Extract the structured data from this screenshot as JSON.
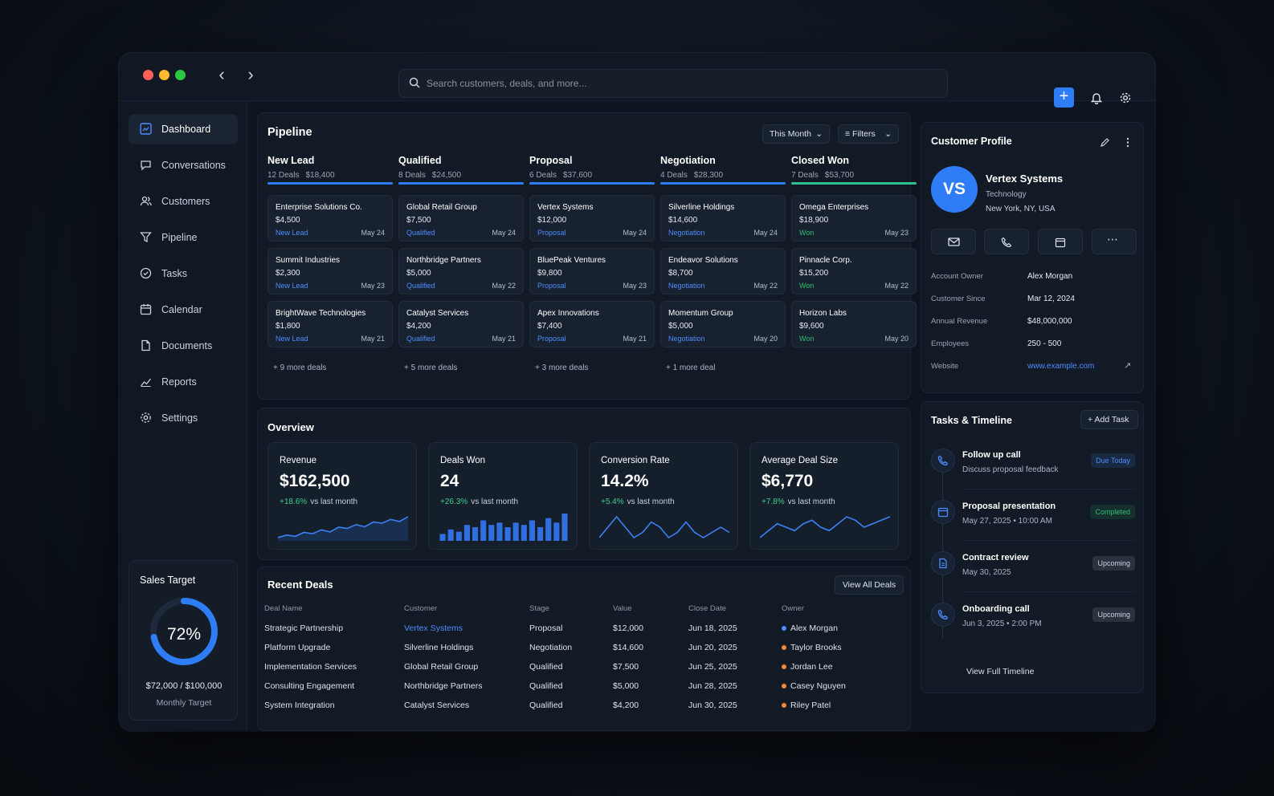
{
  "search": {
    "placeholder": "Search customers, deals, and more..."
  },
  "sidebar": {
    "items": [
      {
        "label": "Dashboard",
        "icon": "dashboard-icon"
      },
      {
        "label": "Conversations",
        "icon": "chat-icon"
      },
      {
        "label": "Customers",
        "icon": "users-icon"
      },
      {
        "label": "Pipeline",
        "icon": "funnel-icon"
      },
      {
        "label": "Tasks",
        "icon": "check-circle-icon"
      },
      {
        "label": "Calendar",
        "icon": "calendar-icon"
      },
      {
        "label": "Documents",
        "icon": "document-icon"
      },
      {
        "label": "Reports",
        "icon": "chart-icon"
      },
      {
        "label": "Settings",
        "icon": "gear-icon"
      }
    ]
  },
  "sales_target": {
    "title": "Sales Target",
    "percent_label": "72%",
    "progress": 0.72,
    "amount": "$72,000 / $100,000",
    "subtitle": "Monthly Target"
  },
  "pipeline": {
    "title": "Pipeline",
    "period": "This Month",
    "filters": "Filters",
    "columns": [
      {
        "name": "New Lead",
        "count": "12 Deals",
        "total": "$18,400",
        "color": "#2f7df6",
        "status_color": "#4c8dff",
        "deals": [
          {
            "name": "Enterprise Solutions Co.",
            "value": "$4,500",
            "stage": "New Lead",
            "date": "May 24"
          },
          {
            "name": "Summit Industries",
            "value": "$2,300",
            "stage": "New Lead",
            "date": "May 23"
          },
          {
            "name": "BrightWave Technologies",
            "value": "$1,800",
            "stage": "New Lead",
            "date": "May 21"
          }
        ],
        "more": "+ 9 more deals"
      },
      {
        "name": "Qualified",
        "count": "8 Deals",
        "total": "$24,500",
        "color": "#2f7df6",
        "status_color": "#4c8dff",
        "deals": [
          {
            "name": "Global Retail Group",
            "value": "$7,500",
            "stage": "Qualified",
            "date": "May 24"
          },
          {
            "name": "Northbridge Partners",
            "value": "$5,000",
            "stage": "Qualified",
            "date": "May 22"
          },
          {
            "name": "Catalyst Services",
            "value": "$4,200",
            "stage": "Qualified",
            "date": "May 21"
          }
        ],
        "more": "+ 5 more deals"
      },
      {
        "name": "Proposal",
        "count": "6 Deals",
        "total": "$37,600",
        "color": "#2f7df6",
        "status_color": "#4c8dff",
        "deals": [
          {
            "name": "Vertex Systems",
            "value": "$12,000",
            "stage": "Proposal",
            "date": "May 24"
          },
          {
            "name": "BluePeak Ventures",
            "value": "$9,800",
            "stage": "Proposal",
            "date": "May 23"
          },
          {
            "name": "Apex Innovations",
            "value": "$7,400",
            "stage": "Proposal",
            "date": "May 21"
          }
        ],
        "more": "+ 3 more deals"
      },
      {
        "name": "Negotiation",
        "count": "4 Deals",
        "total": "$28,300",
        "color": "#2f7df6",
        "status_color": "#4c8dff",
        "deals": [
          {
            "name": "Silverline Holdings",
            "value": "$14,600",
            "stage": "Negotiation",
            "date": "May 24"
          },
          {
            "name": "Endeavor Solutions",
            "value": "$8,700",
            "stage": "Negotiation",
            "date": "May 22"
          },
          {
            "name": "Momentum Group",
            "value": "$5,000",
            "stage": "Negotiation",
            "date": "May 20"
          }
        ],
        "more": "+ 1 more deal"
      },
      {
        "name": "Closed Won",
        "count": "7 Deals",
        "total": "$53,700",
        "color": "#2fbf8f",
        "status_color": "#2fbf6f",
        "deals": [
          {
            "name": "Omega Enterprises",
            "value": "$18,900",
            "stage": "Won",
            "date": "May 23"
          },
          {
            "name": "Pinnacle Corp.",
            "value": "$15,200",
            "stage": "Won",
            "date": "May 22"
          },
          {
            "name": "Horizon Labs",
            "value": "$9,600",
            "stage": "Won",
            "date": "May 20"
          }
        ],
        "more": ""
      }
    ]
  },
  "overview": {
    "title": "Overview",
    "metrics": [
      {
        "label": "Revenue",
        "value": "$162,500",
        "change": "+18.6%",
        "suffix": "vs last month",
        "chart": "area",
        "series": [
          3,
          4,
          3.5,
          5,
          4.5,
          6,
          5.2,
          7,
          6.5,
          8,
          7.2,
          9,
          8.5,
          10,
          9.2,
          11
        ]
      },
      {
        "label": "Deals Won",
        "value": "24",
        "change": "+26.3%",
        "suffix": "vs last month",
        "chart": "bars",
        "series": [
          3,
          5,
          4,
          7,
          6,
          9,
          7,
          8,
          6,
          8,
          7,
          9,
          6,
          10,
          8,
          12
        ]
      },
      {
        "label": "Conversion Rate",
        "value": "14.2%",
        "change": "+5.4%",
        "suffix": "vs last month",
        "chart": "line",
        "series": [
          5,
          7,
          9,
          7,
          5,
          6,
          8,
          7,
          5,
          6,
          8,
          6,
          5,
          6,
          7,
          6
        ]
      },
      {
        "label": "Average Deal Size",
        "value": "$6,770",
        "change": "+7.8%",
        "suffix": "vs last month",
        "chart": "line",
        "series": [
          3,
          5,
          7,
          6,
          5,
          7,
          8,
          6,
          5,
          7,
          9,
          8,
          6,
          7,
          8,
          9
        ]
      }
    ]
  },
  "recent_deals": {
    "title": "Recent Deals",
    "view_all": "View All Deals",
    "headers": [
      "Deal Name",
      "Customer",
      "Stage",
      "Value",
      "Close Date",
      "Owner"
    ],
    "rows": [
      {
        "deal": "Strategic Partnership",
        "customer": "Vertex Systems",
        "stage": "Proposal",
        "value": "$12,000",
        "date": "Jun 18, 2025",
        "owner": "Alex Morgan",
        "owner_color": "#4c8dff",
        "customer_link": true
      },
      {
        "deal": "Platform Upgrade",
        "customer": "Silverline Holdings",
        "stage": "Negotiation",
        "value": "$14,600",
        "date": "Jun 20, 2025",
        "owner": "Taylor Brooks",
        "owner_color": "#f08a3c",
        "customer_link": false
      },
      {
        "deal": "Implementation Services",
        "customer": "Global Retail Group",
        "stage": "Qualified",
        "value": "$7,500",
        "date": "Jun 25, 2025",
        "owner": "Jordan Lee",
        "owner_color": "#f08a3c",
        "customer_link": false
      },
      {
        "deal": "Consulting Engagement",
        "customer": "Northbridge Partners",
        "stage": "Qualified",
        "value": "$5,000",
        "date": "Jun 28, 2025",
        "owner": "Casey Nguyen",
        "owner_color": "#f08a3c",
        "customer_link": false
      },
      {
        "deal": "System Integration",
        "customer": "Catalyst Services",
        "stage": "Qualified",
        "value": "$4,200",
        "date": "Jun 30, 2025",
        "owner": "Riley Patel",
        "owner_color": "#f08a3c",
        "customer_link": false
      }
    ]
  },
  "customer_profile": {
    "title": "Customer Profile",
    "initials": "VS",
    "name": "Vertex Systems",
    "industry": "Technology",
    "location": "New York, NY, USA",
    "actions": [
      "mail-icon",
      "phone-icon",
      "calendar-icon",
      "more-icon"
    ],
    "fields": [
      {
        "key": "Account Owner",
        "value": "Alex Morgan"
      },
      {
        "key": "Customer Since",
        "value": "Mar 12, 2024"
      },
      {
        "key": "Annual Revenue",
        "value": "$48,000,000"
      },
      {
        "key": "Employees",
        "value": "250 - 500"
      },
      {
        "key": "Website",
        "value": "www.example.com"
      }
    ]
  },
  "tasks": {
    "title": "Tasks & Timeline",
    "add": "Add Task",
    "items": [
      {
        "title": "Follow up call",
        "sub": "Discuss proposal feedback",
        "badge": "Due Today",
        "badge_color": "#4c8dff",
        "icon": "phone-icon"
      },
      {
        "title": "Proposal presentation",
        "sub": "May 27, 2025  •  10:00 AM",
        "badge": "Completed",
        "badge_color": "#2fbf6f",
        "icon": "calendar-icon"
      },
      {
        "title": "Contract review",
        "sub": "May 30, 2025",
        "badge": "Upcoming",
        "badge_color": "#c9d2de",
        "icon": "document-icon"
      },
      {
        "title": "Onboarding call",
        "sub": "Jun 3, 2025  •  2:00 PM",
        "badge": "Upcoming",
        "badge_color": "#c9d2de",
        "icon": "phone-icon"
      }
    ],
    "view_full": "View Full Timeline"
  }
}
